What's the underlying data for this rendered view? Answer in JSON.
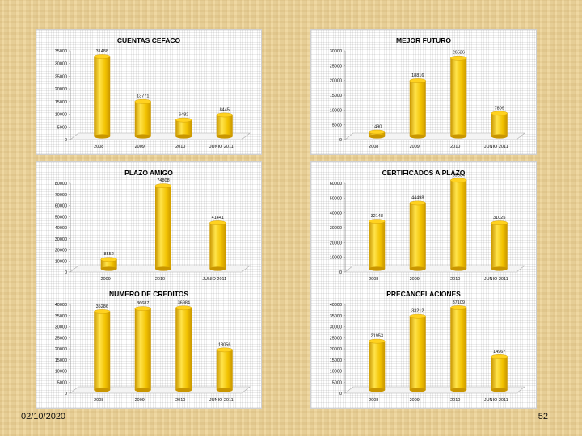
{
  "colors": {
    "bar_light": "#ffe34a",
    "bar_mid": "#f2c200",
    "bar_dark": "#c99600",
    "bar_top": "#ffd21f",
    "floor": "#f4f4f4"
  },
  "footer": {
    "date": "02/10/2020",
    "page": "52"
  },
  "chart_data": [
    {
      "type": "bar",
      "title": "CUENTAS CEFACO",
      "categories": [
        "2008",
        "2009",
        "2010",
        "JUNIO 2011"
      ],
      "values": [
        31488,
        13771,
        6482,
        8445
      ],
      "ylim": [
        0,
        35000
      ],
      "yticks": [
        0,
        5000,
        10000,
        15000,
        20000,
        25000,
        30000,
        35000
      ],
      "data_labels": [
        "31488",
        "13771",
        "6482",
        "8445"
      ]
    },
    {
      "type": "bar",
      "title": "MEJOR FUTURO",
      "categories": [
        "2008",
        "2009",
        "2010",
        "JUNIO 2011"
      ],
      "values": [
        1490,
        18816,
        26526,
        7809
      ],
      "ylim": [
        0,
        30000
      ],
      "yticks": [
        0,
        5000,
        10000,
        15000,
        20000,
        25000,
        30000
      ],
      "data_labels": [
        "1490",
        "18816",
        "26526",
        "7809"
      ]
    },
    {
      "type": "bar",
      "title": "PLAZO AMIGO",
      "categories": [
        "2009",
        "2010",
        "JUNIO 2011"
      ],
      "values": [
        8552,
        74808,
        41441
      ],
      "ylim": [
        0,
        80000
      ],
      "yticks": [
        0,
        10000,
        20000,
        30000,
        40000,
        50000,
        60000,
        70000,
        80000
      ],
      "data_labels": [
        "8552",
        "74808",
        "41441"
      ]
    },
    {
      "type": "bar",
      "title": "CERTIFICADOS A PLAZO",
      "categories": [
        "2008",
        "2009",
        "2010",
        "JUNIO 2011"
      ],
      "values": [
        32148,
        44498,
        59804,
        31025
      ],
      "ylim": [
        0,
        60000
      ],
      "yticks": [
        0,
        10000,
        20000,
        30000,
        40000,
        50000,
        60000
      ],
      "data_labels": [
        "32148",
        "44498",
        "59804",
        "31025"
      ]
    },
    {
      "type": "bar",
      "title": "NUMERO DE CREDITOS",
      "categories": [
        "2008",
        "2009",
        "2010",
        "JUNIO 2011"
      ],
      "values": [
        35286,
        36687,
        36984,
        18056
      ],
      "ylim": [
        0,
        40000
      ],
      "yticks": [
        0,
        5000,
        10000,
        15000,
        20000,
        25000,
        30000,
        35000,
        40000
      ],
      "data_labels": [
        "35286",
        "36687",
        "36984",
        "18056"
      ]
    },
    {
      "type": "bar",
      "title": "PRECANCELACIONES",
      "categories": [
        "2008",
        "2009",
        "2010",
        "JUNIO 2011"
      ],
      "values": [
        21953,
        33212,
        37109,
        14967
      ],
      "ylim": [
        0,
        40000
      ],
      "yticks": [
        0,
        5000,
        10000,
        15000,
        20000,
        25000,
        30000,
        35000,
        40000
      ],
      "data_labels": [
        "21953",
        "33212",
        "37109",
        "14967"
      ]
    }
  ]
}
